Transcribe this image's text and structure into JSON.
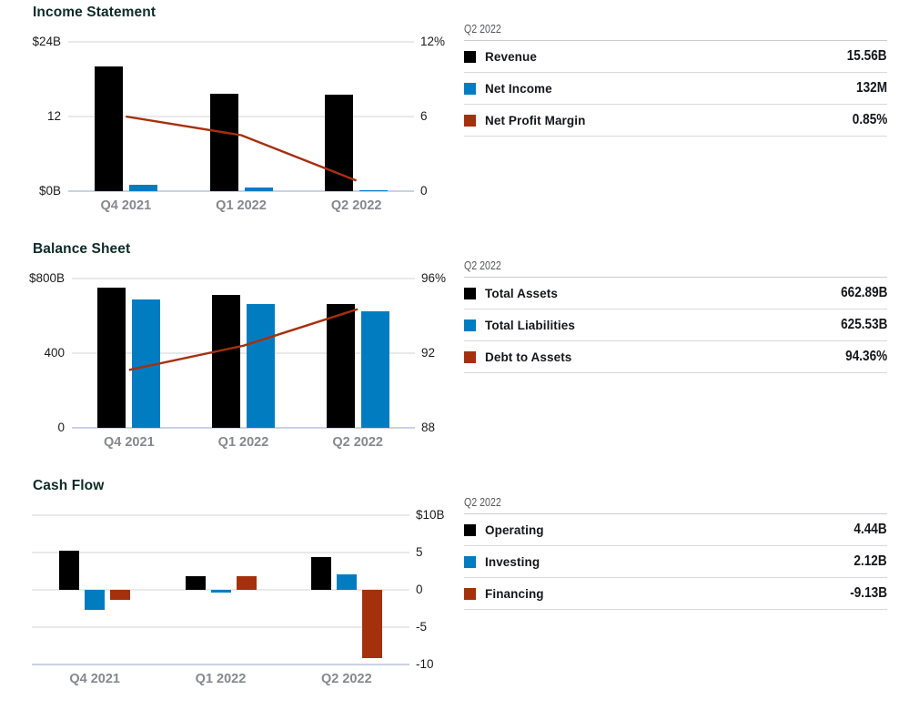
{
  "palette": {
    "black": "#000000",
    "blue": "#027cc1",
    "red": "#a5300e",
    "grid": "#e9e9e9",
    "axis_baseline": "#c9d2e4"
  },
  "charts": [
    {
      "title": "Income Statement",
      "type": "bar+line",
      "categories": [
        "Q4 2021",
        "Q1 2022",
        "Q2 2022"
      ],
      "left_axis": {
        "range": [
          0,
          24
        ],
        "ticks": [
          {
            "value": 24,
            "label": "$24B"
          },
          {
            "value": 12,
            "label": "12"
          },
          {
            "value": 0,
            "label": "$0B"
          }
        ]
      },
      "right_axis": {
        "range": [
          0,
          12
        ],
        "ticks": [
          {
            "value": 12,
            "label": "12%"
          },
          {
            "value": 6,
            "label": "6"
          },
          {
            "value": 0,
            "label": "0"
          }
        ]
      },
      "series": [
        {
          "name": "Revenue",
          "type": "bar",
          "color": "black",
          "axis": "left",
          "values": [
            20.1,
            15.7,
            15.56
          ]
        },
        {
          "name": "Net Income",
          "type": "bar",
          "color": "blue",
          "axis": "left",
          "values": [
            1.0,
            0.6,
            0.132
          ]
        },
        {
          "name": "Net Profit Margin",
          "type": "line",
          "color": "red",
          "axis": "right",
          "values": [
            6.0,
            4.5,
            0.85
          ]
        }
      ],
      "legend": {
        "period": "Q2 2022",
        "rows": [
          {
            "label": "Revenue",
            "value": "15.56B",
            "color": "black"
          },
          {
            "label": "Net Income",
            "value": "132M",
            "color": "blue"
          },
          {
            "label": "Net Profit Margin",
            "value": "0.85%",
            "color": "red"
          }
        ]
      }
    },
    {
      "title": "Balance Sheet",
      "type": "bar+line",
      "categories": [
        "Q4 2021",
        "Q1 2022",
        "Q2 2022"
      ],
      "left_axis": {
        "range": [
          0,
          800
        ],
        "ticks": [
          {
            "value": 800,
            "label": "$800B"
          },
          {
            "value": 400,
            "label": "400"
          },
          {
            "value": 0,
            "label": "0"
          }
        ]
      },
      "right_axis": {
        "range": [
          88,
          96
        ],
        "ticks": [
          {
            "value": 96,
            "label": "96%"
          },
          {
            "value": 92,
            "label": "92"
          },
          {
            "value": 88,
            "label": "88"
          }
        ]
      },
      "series": [
        {
          "name": "Total Assets",
          "type": "bar",
          "color": "black",
          "axis": "left",
          "values": [
            752,
            712,
            662.89
          ]
        },
        {
          "name": "Total Liabilities",
          "type": "bar",
          "color": "blue",
          "axis": "left",
          "values": [
            688,
            662,
            625.53
          ]
        },
        {
          "name": "Debt to Assets",
          "type": "line",
          "color": "red",
          "axis": "right",
          "values": [
            91.1,
            92.4,
            94.36
          ]
        }
      ],
      "legend": {
        "period": "Q2 2022",
        "rows": [
          {
            "label": "Total Assets",
            "value": "662.89B",
            "color": "black"
          },
          {
            "label": "Total Liabilities",
            "value": "625.53B",
            "color": "blue"
          },
          {
            "label": "Debt to Assets",
            "value": "94.36%",
            "color": "red"
          }
        ]
      }
    },
    {
      "title": "Cash Flow",
      "type": "bar",
      "categories": [
        "Q4 2021",
        "Q1 2022",
        "Q2 2022"
      ],
      "right_axis": {
        "range": [
          -10,
          10
        ],
        "ticks": [
          {
            "value": 10,
            "label": "$10B"
          },
          {
            "value": 5,
            "label": "5"
          },
          {
            "value": 0,
            "label": "0"
          },
          {
            "value": -5,
            "label": "-5"
          },
          {
            "value": -10,
            "label": "-10"
          }
        ]
      },
      "series": [
        {
          "name": "Operating",
          "type": "bar",
          "color": "black",
          "axis": "right",
          "values": [
            5.2,
            1.8,
            4.44
          ]
        },
        {
          "name": "Investing",
          "type": "bar",
          "color": "blue",
          "axis": "right",
          "values": [
            -2.7,
            -0.4,
            2.12
          ]
        },
        {
          "name": "Financing",
          "type": "bar",
          "color": "red",
          "axis": "right",
          "values": [
            -1.3,
            1.8,
            -9.13
          ]
        }
      ],
      "legend": {
        "period": "Q2 2022",
        "rows": [
          {
            "label": "Operating",
            "value": "4.44B",
            "color": "black"
          },
          {
            "label": "Investing",
            "value": "2.12B",
            "color": "blue"
          },
          {
            "label": "Financing",
            "value": "-9.13B",
            "color": "red"
          }
        ]
      }
    }
  ]
}
